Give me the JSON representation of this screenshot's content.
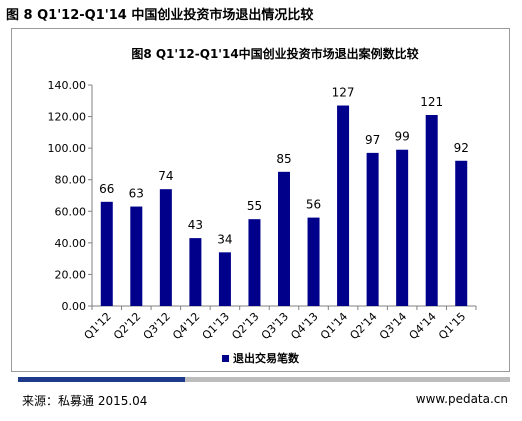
{
  "figure": {
    "title": "图 8 Q1'12-Q1'14 中国创业投资市场退出情况比较"
  },
  "footer": {
    "source": "来源：私募通 2015.04",
    "url": "www.pedata.cn",
    "progress_fraction": 0.34
  },
  "colors": {
    "bar": "#00008b",
    "frame": "#9a9a9a",
    "accent": "#1f3a8a",
    "track": "#bdbdbd"
  },
  "chart_data": {
    "type": "bar",
    "title": "图8 Q1'12-Q1'14中国创业投资市场退出案例数比较",
    "categories": [
      "Q1'12",
      "Q2'12",
      "Q3'12",
      "Q4'12",
      "Q1'13",
      "Q2'13",
      "Q3'13",
      "Q4'13",
      "Q1'14",
      "Q2'14",
      "Q3'14",
      "Q4'14",
      "Q1'15"
    ],
    "series": [
      {
        "name": "退出交易笔数",
        "values": [
          66,
          63,
          74,
          43,
          34,
          55,
          85,
          56,
          127,
          97,
          99,
          121,
          92
        ]
      }
    ],
    "value_labels": [
      "66",
      "63",
      "74",
      "43",
      "34",
      "55",
      "85",
      "56",
      "127",
      "97",
      "99",
      "121",
      "92"
    ],
    "ylim": [
      0,
      140
    ],
    "yticks": [
      "0.00",
      "20.00",
      "40.00",
      "60.00",
      "80.00",
      "100.00",
      "120.00",
      "140.00"
    ],
    "ytick_values": [
      0,
      20,
      40,
      60,
      80,
      100,
      120,
      140
    ],
    "xlabel": "",
    "ylabel": "",
    "grid": false,
    "legend": "bottom-center"
  }
}
